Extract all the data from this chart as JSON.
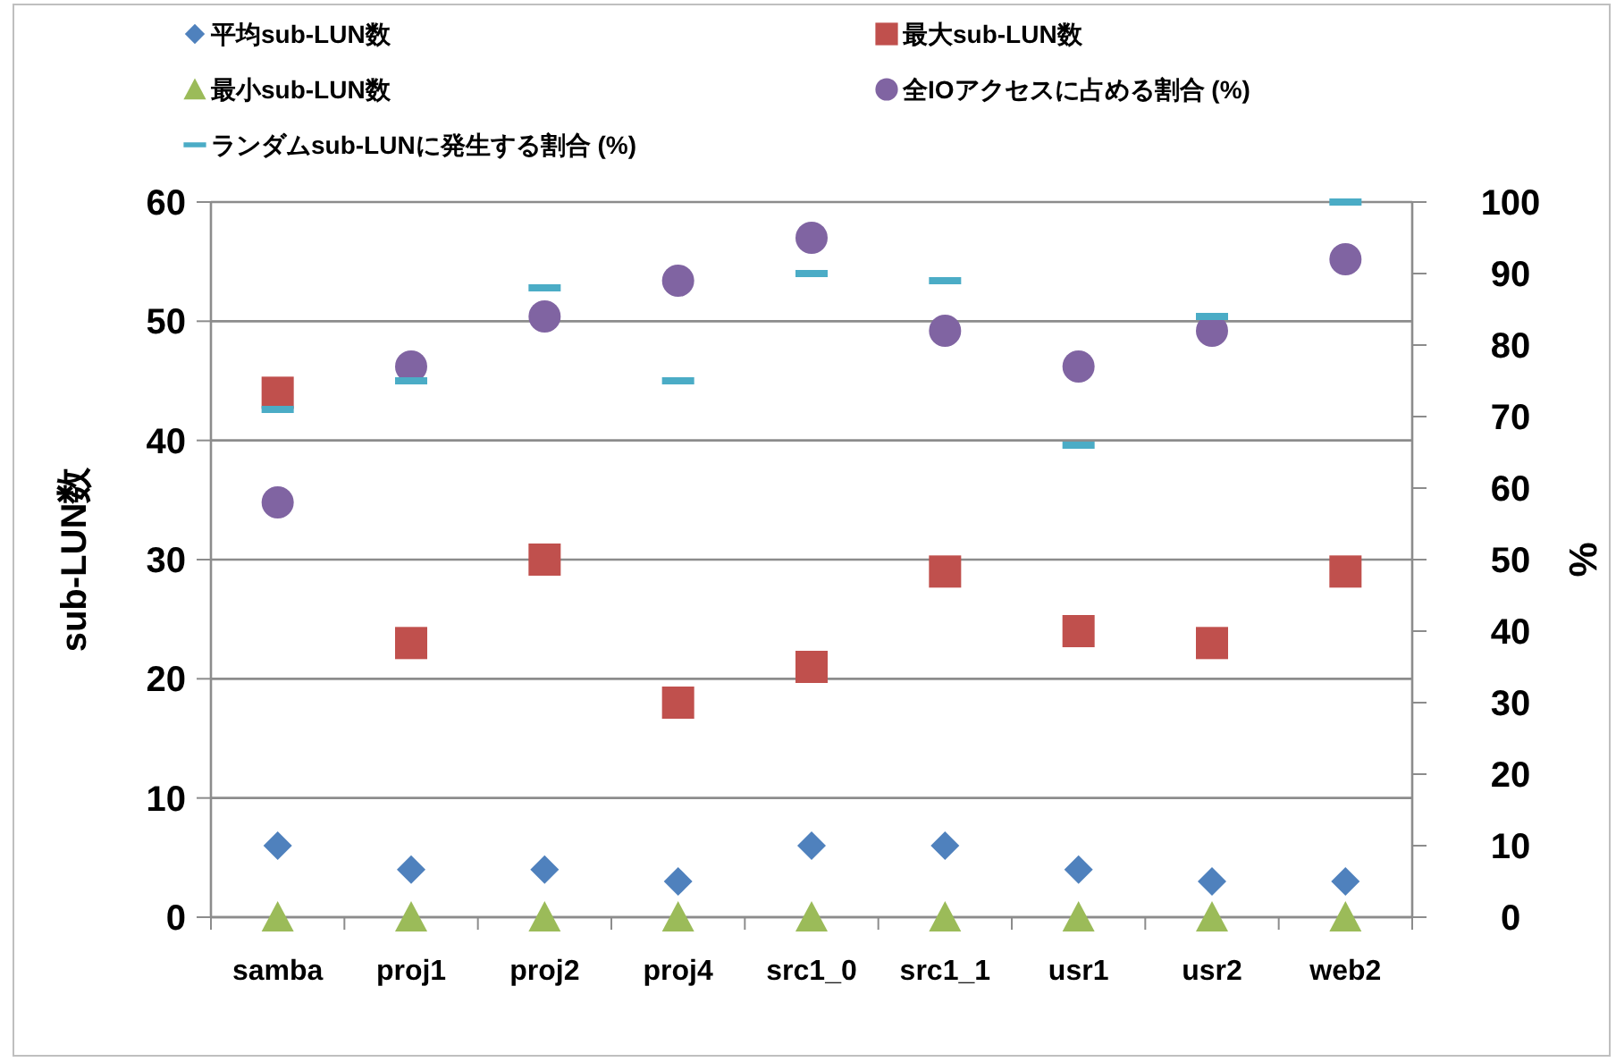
{
  "chart_data": {
    "type": "scatter",
    "categories": [
      "samba",
      "proj1",
      "proj2",
      "proj4",
      "src1_0",
      "src1_1",
      "usr1",
      "usr2",
      "web2"
    ],
    "series": [
      {
        "name": "平均sub-LUN数",
        "color": "#4f81bd",
        "marker": "diamond",
        "values": [
          6,
          4,
          4,
          3,
          6,
          6,
          4,
          3,
          3
        ]
      },
      {
        "name": "最大sub-LUN数",
        "color": "#c0504d",
        "marker": "square",
        "values": [
          44,
          23,
          30,
          18,
          21,
          29,
          24,
          23,
          29
        ]
      },
      {
        "name": "最小sub-LUN数",
        "color": "#9bbb59",
        "marker": "triangle",
        "values": [
          0,
          0,
          0,
          0,
          0,
          0,
          0,
          0,
          0
        ]
      },
      {
        "name": "全IOアクセスに占める割合 (%)",
        "color": "#8064a2",
        "marker": "circle",
        "axis": "y2",
        "values": [
          58,
          77,
          84,
          89,
          95,
          82,
          77,
          82,
          92
        ]
      },
      {
        "name": "ランダムsub-LUNに発生する割合 (%)",
        "color": "#4bacc6",
        "axis": "y2",
        "values": [
          71,
          75,
          88,
          75,
          90,
          89,
          66,
          84,
          100
        ]
      }
    ],
    "ylabel": "sub-LUN数",
    "y2label": "%",
    "ylim": [
      0,
      60
    ],
    "yticks": [
      0,
      10,
      20,
      30,
      40,
      50,
      60
    ],
    "y2lim": [
      0,
      100
    ],
    "y2ticks": [
      0,
      10,
      20,
      30,
      40,
      50,
      60,
      70,
      80,
      90,
      100
    ],
    "grid": "y",
    "legend": "top"
  }
}
